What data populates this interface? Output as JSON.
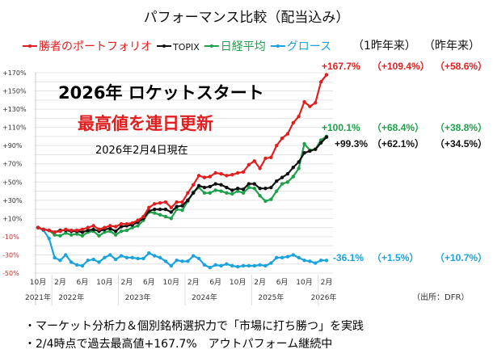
{
  "chart_data": {
    "type": "line",
    "title": "パフォーマンス比較（配当込み）",
    "ylim": [
      -50,
      170
    ],
    "yticks": [
      "+170%",
      "+150%",
      "+130%",
      "+110%",
      "+90%",
      "+70%",
      "+50%",
      "+30%",
      "+10%",
      "-10%",
      "-30%",
      "-50%"
    ],
    "ytick_values": [
      170,
      150,
      130,
      110,
      90,
      70,
      50,
      30,
      10,
      -10,
      -30,
      -50
    ],
    "grid": true,
    "legend_position": "top",
    "x_month_labels": [
      "10月",
      "2月",
      "6月",
      "10月",
      "2月",
      "6月",
      "10月",
      "2月",
      "6月",
      "10月",
      "2月",
      "6月",
      "10月",
      "2月"
    ],
    "x_year_labels": [
      "2021年",
      "2022年",
      "2023年",
      "2024年",
      "2025年",
      "2026年"
    ],
    "x_range": [
      "2021-10",
      "2026-02"
    ],
    "series": [
      {
        "name": "勝者のポートフォリオ",
        "color": "#e02020",
        "values": [
          0,
          -2,
          -3,
          -5,
          -4,
          -2,
          -3,
          -3,
          -2,
          0,
          2,
          -2,
          0,
          2,
          1,
          4,
          4,
          5,
          8,
          12,
          22,
          26,
          27,
          28,
          22,
          28,
          28,
          38,
          47,
          57,
          55,
          56,
          60,
          59,
          57,
          58,
          60,
          61,
          69,
          73,
          65,
          76,
          77,
          90,
          98,
          103,
          115,
          122,
          138,
          133,
          137,
          160,
          167.7
        ],
        "final": "+167.7%",
        "since_2y": "（+109.4%）",
        "since_1y": "（+58.6%）"
      },
      {
        "name": "TOPIX",
        "color": "#111111",
        "values": [
          0,
          -2,
          -3,
          -5,
          -3,
          -3,
          -4,
          -4,
          -5,
          -3,
          -2,
          -4,
          -2,
          -1,
          -4,
          1,
          2,
          3,
          6,
          10,
          18,
          20,
          20,
          20,
          17,
          23,
          24,
          30,
          38,
          46,
          44,
          45,
          48,
          47,
          44,
          41,
          43,
          42,
          48,
          48,
          43,
          43,
          44,
          51,
          55,
          59,
          66,
          72,
          82,
          84,
          86,
          93,
          99.3
        ],
        "final": "+99.3%",
        "since_2y": "（+62.1%）",
        "since_1y": "（+34.5%）"
      },
      {
        "name": "日経平均",
        "color": "#1fa04a",
        "values": [
          0,
          -2,
          -3,
          -8,
          -9,
          -6,
          -8,
          -7,
          -9,
          -5,
          -4,
          -9,
          -5,
          -4,
          -8,
          -4,
          -3,
          0,
          2,
          8,
          17,
          16,
          14,
          12,
          10,
          20,
          19,
          29,
          39,
          44,
          38,
          38,
          41,
          40,
          38,
          37,
          40,
          38,
          44,
          43,
          35,
          29,
          31,
          40,
          48,
          50,
          56,
          65,
          92,
          85,
          86,
          96,
          100.1
        ],
        "final": "+100.1%",
        "since_2y": "（+68.4%）",
        "since_1y": "（+38.8%）"
      },
      {
        "name": "グロース",
        "color": "#1aa3dc",
        "values": [
          0,
          -3,
          -12,
          -33,
          -36,
          -30,
          -38,
          -41,
          -42,
          -36,
          -35,
          -38,
          -33,
          -30,
          -35,
          -31,
          -33,
          -33,
          -34,
          -34,
          -28,
          -31,
          -33,
          -37,
          -42,
          -36,
          -37,
          -37,
          -31,
          -34,
          -41,
          -44,
          -41,
          -42,
          -40,
          -42,
          -43,
          -42,
          -42,
          -42,
          -41,
          -42,
          -39,
          -33,
          -33,
          -32,
          -30,
          -33,
          -36,
          -37,
          -39,
          -36,
          -36.1
        ],
        "final": "-36.1%",
        "since_2y": "（+1.5%）",
        "since_1y": "（+10.7%）"
      }
    ],
    "column_headers": [
      "（1昨年来）",
      "（昨年来）"
    ],
    "annotations": {
      "headline": "2026年 ロケットスタート",
      "subheadline": "最高値を連日更新",
      "as_of": "2026年2月4日現在"
    },
    "source": "（出所：DFR）"
  },
  "notes": [
    "・マーケット分析力＆個別銘柄選択力で「市場に打ち勝つ」を実践",
    "・2/4時点で過去最高値+167.7%　アウトパフォーム継続中"
  ]
}
